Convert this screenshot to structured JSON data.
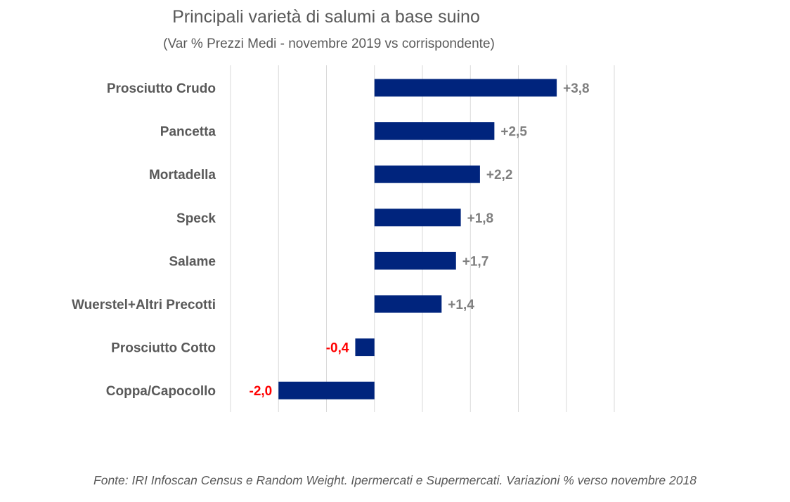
{
  "chart_data": {
    "type": "bar",
    "orientation": "horizontal",
    "title": "Principali varietà di salumi a base suino",
    "subtitle": "(Var % Prezzi Medi - novembre 2019 vs corrispondente)",
    "categories": [
      "Prosciutto Crudo",
      "Pancetta",
      "Mortadella",
      "Speck",
      "Salame",
      "Wuerstel+Altri Precotti",
      "Prosciutto Cotto",
      "Coppa/Capocollo"
    ],
    "values": [
      3.8,
      2.5,
      2.2,
      1.8,
      1.7,
      1.4,
      -0.4,
      -2.0
    ],
    "value_labels": [
      "+3,8",
      "+2,5",
      "+2,2",
      "+1,8",
      "+1,7",
      "+1,4",
      "-0,4",
      "-2,0"
    ],
    "xlim": [
      -3,
      5
    ],
    "grid": true,
    "legend": false,
    "colors": {
      "bar": "#00247D",
      "positive_label": "#7F7F7F",
      "negative_label": "#FF0000",
      "grid": "#D9D9D9"
    }
  },
  "footnote": "Fonte: IRI Infoscan Census e Random Weight. Ipermercati e Supermercati. Variazioni % verso novembre 2018"
}
